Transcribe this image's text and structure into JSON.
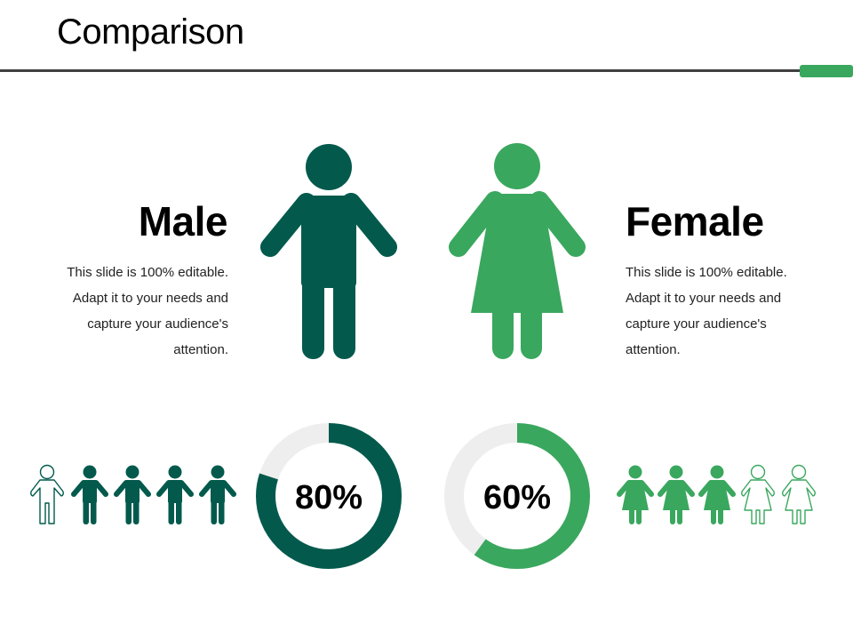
{
  "slide": {
    "title": "Comparison"
  },
  "colors": {
    "male": "#035a4c",
    "female": "#3aa75e",
    "track": "#eeeeee",
    "accent_bar": "#3aa75e",
    "rule": "#3f3f3f"
  },
  "male": {
    "heading": "Male",
    "description": "This slide is 100% editable. Adapt it to your needs and capture your audience's attention.",
    "percent_label": "80%",
    "percent": 80,
    "icons_total": 5,
    "icons_filled": 4,
    "icon_name": "male-person-icon"
  },
  "female": {
    "heading": "Female",
    "description": "This slide is 100% editable. Adapt it to your needs and capture your audience's attention.",
    "percent_label": "60%",
    "percent": 60,
    "icons_total": 5,
    "icons_filled": 3,
    "icon_name": "female-person-icon"
  }
}
